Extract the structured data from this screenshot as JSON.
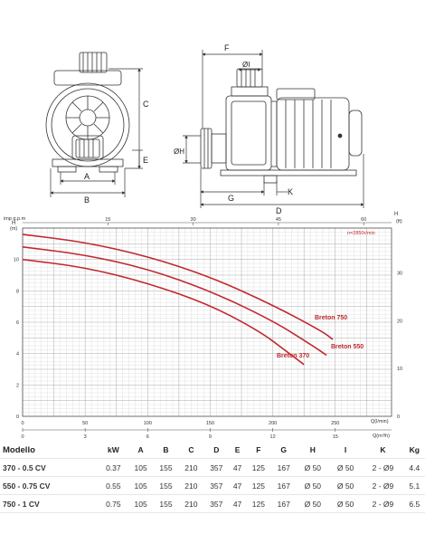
{
  "drawing": {
    "dim_labels": {
      "A": "A",
      "B": "B",
      "C": "C",
      "D": "D",
      "E": "E",
      "F": "F",
      "G": "G",
      "H": "ØH",
      "I": "ØI",
      "K": "K"
    }
  },
  "colors": {
    "curve": "#c0282e",
    "grid": "#cfcfcf",
    "grid_major": "#a9a9a9",
    "axis": "#555555"
  },
  "chart_data": {
    "type": "line",
    "annotation": "n=2850r/min",
    "y_left": {
      "label": "H",
      "unit": "(m)",
      "ticks": [
        0,
        2,
        4,
        6,
        8,
        10
      ],
      "range": [
        0,
        12
      ]
    },
    "y_right": {
      "label": "H",
      "unit": "(ft)",
      "ticks": [
        0,
        10,
        20,
        30
      ],
      "range": [
        0,
        39.37
      ]
    },
    "x_top": {
      "label": "imp g.p.m",
      "ticks": [
        15,
        30,
        45,
        60
      ]
    },
    "x_bottom_lpm": {
      "label": "Q(l/min)",
      "ticks": [
        0,
        50,
        100,
        150,
        200,
        250
      ]
    },
    "x_bottom_m3h": {
      "label": "Q(m³/h)",
      "ticks": [
        0,
        3,
        6,
        9,
        12,
        15
      ]
    },
    "x_range_lpm": [
      0,
      295
    ],
    "series": [
      {
        "name": "Breton 750",
        "x": [
          0,
          50,
          100,
          150,
          200,
          240,
          248
        ],
        "y": [
          11.6,
          11.1,
          10.2,
          8.9,
          7.1,
          5.4,
          4.9
        ]
      },
      {
        "name": "Breton 550",
        "x": [
          0,
          50,
          100,
          150,
          200,
          230,
          243
        ],
        "y": [
          10.8,
          10.3,
          9.4,
          8.0,
          6.1,
          4.6,
          3.9
        ]
      },
      {
        "name": "Breton 370",
        "x": [
          0,
          50,
          100,
          150,
          190,
          210,
          225
        ],
        "y": [
          10.0,
          9.5,
          8.5,
          7.1,
          5.4,
          4.2,
          3.3
        ]
      }
    ]
  },
  "table": {
    "headers": [
      "Modello",
      "kW",
      "A",
      "B",
      "C",
      "D",
      "E",
      "F",
      "G",
      "H",
      "I",
      "K",
      "Kg"
    ],
    "rows": [
      [
        "370 - 0.5 CV",
        "0.37",
        "105",
        "155",
        "210",
        "357",
        "47",
        "125",
        "167",
        "Ø 50",
        "Ø 50",
        "2 - Ø9",
        "4.4"
      ],
      [
        "550 - 0.75 CV",
        "0.55",
        "105",
        "155",
        "210",
        "357",
        "47",
        "125",
        "167",
        "Ø 50",
        "Ø 50",
        "2 - Ø9",
        "5.1"
      ],
      [
        "750 - 1 CV",
        "0.75",
        "105",
        "155",
        "210",
        "357",
        "47",
        "125",
        "167",
        "Ø 50",
        "Ø 50",
        "2 - Ø9",
        "6.5"
      ]
    ]
  }
}
